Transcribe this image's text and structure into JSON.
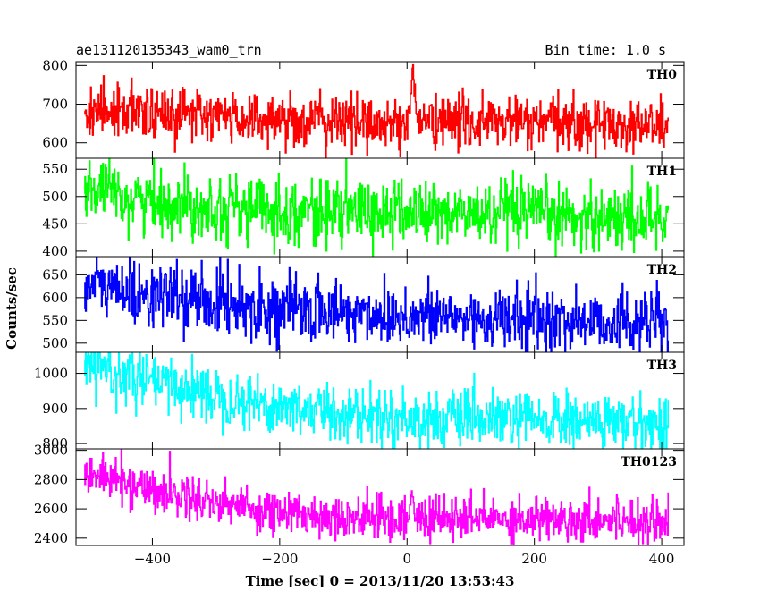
{
  "header": {
    "title": "ae131120135343_wam0_trn",
    "bin_time": "Bin time: 1.0 s"
  },
  "axes": {
    "xlabel": "Time [sec] 0 = 2013/11/20 13:53:43",
    "ylabel": "Counts/sec"
  },
  "chart_data": {
    "type": "line",
    "xlim": [
      -520,
      435
    ],
    "x_range": [
      -507,
      410
    ],
    "bin_time_s": 1.0,
    "x_ticks": [
      -400,
      -200,
      0,
      200,
      400
    ],
    "x_tick_labels": [
      "−400",
      "−200",
      "0",
      "200",
      "400"
    ],
    "panels": [
      {
        "name": "TH0",
        "color": "#ff0000",
        "ylim": [
          560,
          810
        ],
        "y_ticks": [
          600,
          700,
          800
        ],
        "trend": [
          [
            -507,
            690
          ],
          [
            -400,
            675
          ],
          [
            -200,
            660
          ],
          [
            -20,
            650
          ],
          [
            0,
            655
          ],
          [
            100,
            655
          ],
          [
            410,
            645
          ]
        ],
        "noise": 35,
        "burst": {
          "t_start": 2,
          "t_peak": 8,
          "t_end": 16,
          "peak": 805
        }
      },
      {
        "name": "TH1",
        "color": "#00ff00",
        "ylim": [
          390,
          570
        ],
        "y_ticks": [
          400,
          450,
          500,
          550
        ],
        "trend": [
          [
            -507,
            510
          ],
          [
            -400,
            490
          ],
          [
            -200,
            475
          ],
          [
            0,
            470
          ],
          [
            200,
            465
          ],
          [
            410,
            460
          ]
        ],
        "noise": 30
      },
      {
        "name": "TH2",
        "color": "#0000ff",
        "ylim": [
          480,
          690
        ],
        "y_ticks": [
          500,
          550,
          600,
          650
        ],
        "trend": [
          [
            -507,
            630
          ],
          [
            -400,
            605
          ],
          [
            -200,
            575
          ],
          [
            0,
            560
          ],
          [
            200,
            550
          ],
          [
            410,
            545
          ]
        ],
        "noise": 35
      },
      {
        "name": "TH3",
        "color": "#00ffff",
        "ylim": [
          785,
          1060
        ],
        "y_ticks": [
          800,
          900,
          1000
        ],
        "trend": [
          [
            -507,
            1020
          ],
          [
            -400,
            975
          ],
          [
            -200,
            905
          ],
          [
            0,
            870
          ],
          [
            200,
            865
          ],
          [
            410,
            855
          ]
        ],
        "noise": 40
      },
      {
        "name": "TH0123",
        "color": "#ff00ff",
        "ylim": [
          2350,
          3010
        ],
        "y_ticks": [
          2400,
          2600,
          2800,
          3000
        ],
        "trend": [
          [
            -507,
            2850
          ],
          [
            -400,
            2730
          ],
          [
            -200,
            2570
          ],
          [
            0,
            2530
          ],
          [
            200,
            2535
          ],
          [
            410,
            2525
          ]
        ],
        "noise": 75,
        "burst": {
          "t_start": 0,
          "t_peak": 6,
          "t_end": 14,
          "peak": 2700
        }
      }
    ]
  }
}
